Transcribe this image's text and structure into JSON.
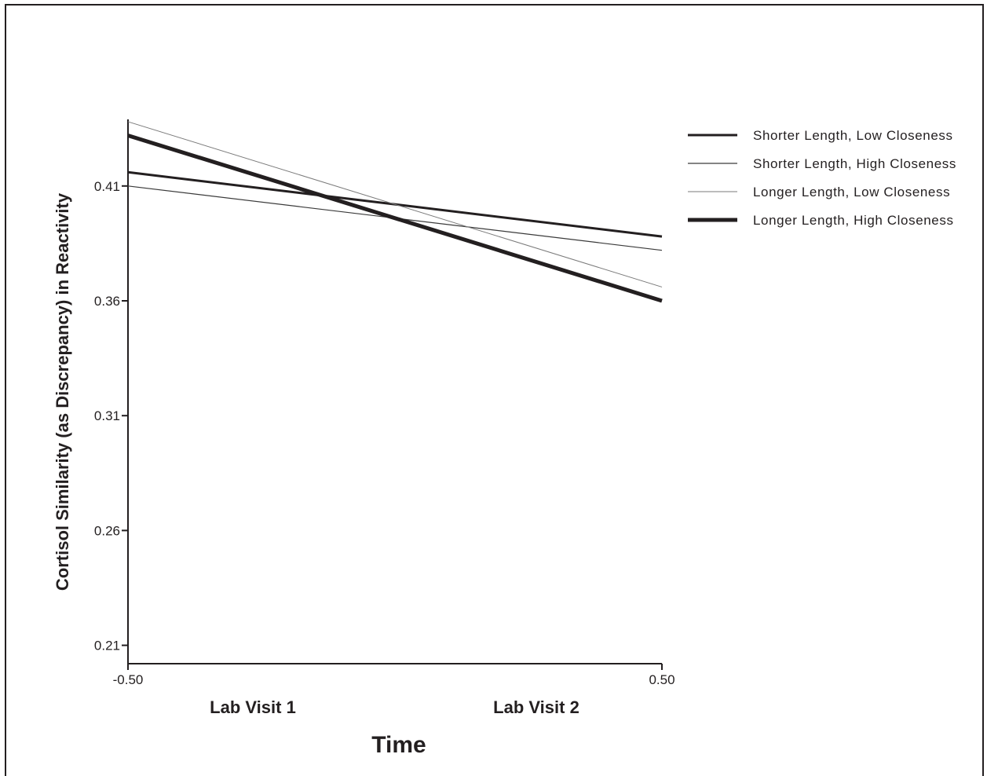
{
  "chart_data": {
    "type": "line",
    "xlabel": "Time",
    "ylabel": "Cortisol Similarity (as Discrepancy) in Reactivity",
    "x": [
      -0.5,
      0.5
    ],
    "x_tick_labels": [
      "-0.50",
      "0.50"
    ],
    "categories": [
      "Lab Visit 1",
      "Lab Visit 2"
    ],
    "xlim": [
      -0.5,
      0.5
    ],
    "ylim": [
      0.202,
      0.439
    ],
    "y_ticks": [
      0.41,
      0.36,
      0.31,
      0.26,
      0.21
    ],
    "y_tick_labels": [
      "0.41",
      "0.36",
      "0.31",
      "0.26",
      "0.21"
    ],
    "legend_position": "right",
    "grid": false,
    "series": [
      {
        "name": "Shorter Length, Low Closeness",
        "values": [
          0.416,
          0.388
        ],
        "color": "#231f20",
        "weight": "medium"
      },
      {
        "name": "Shorter Length, High Closeness",
        "values": [
          0.41,
          0.382
        ],
        "color": "#3a3a3a",
        "weight": "thin"
      },
      {
        "name": "Longer Length, Low Closeness",
        "values": [
          0.438,
          0.366
        ],
        "color": "#7a7a7a",
        "weight": "hairline"
      },
      {
        "name": "Longer Length, High Closeness",
        "values": [
          0.432,
          0.36
        ],
        "color": "#231f20",
        "weight": "heavy"
      }
    ]
  }
}
